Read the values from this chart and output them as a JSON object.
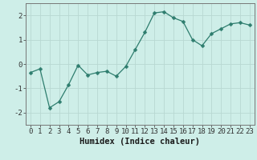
{
  "x": [
    0,
    1,
    2,
    3,
    4,
    5,
    6,
    7,
    8,
    9,
    10,
    11,
    12,
    13,
    14,
    15,
    16,
    17,
    18,
    19,
    20,
    21,
    22,
    23
  ],
  "y": [
    -0.35,
    -0.2,
    -1.8,
    -1.55,
    -0.85,
    -0.05,
    -0.45,
    -0.35,
    -0.3,
    -0.5,
    -0.1,
    0.6,
    1.3,
    2.1,
    2.15,
    1.9,
    1.75,
    1.0,
    0.75,
    1.25,
    1.45,
    1.65,
    1.7,
    1.6
  ],
  "line_color": "#2e7d6e",
  "marker": "D",
  "marker_size": 2.5,
  "bg_color": "#ceeee8",
  "grid_color": "#b8d8d2",
  "axis_color": "#555555",
  "xlabel": "Humidex (Indice chaleur)",
  "ylim": [
    -2.5,
    2.5
  ],
  "xlim": [
    -0.5,
    23.5
  ],
  "yticks": [
    -2,
    -1,
    0,
    1,
    2
  ],
  "xticks": [
    0,
    1,
    2,
    3,
    4,
    5,
    6,
    7,
    8,
    9,
    10,
    11,
    12,
    13,
    14,
    15,
    16,
    17,
    18,
    19,
    20,
    21,
    22,
    23
  ],
  "tick_fontsize": 6.5,
  "xlabel_fontsize": 7.5
}
